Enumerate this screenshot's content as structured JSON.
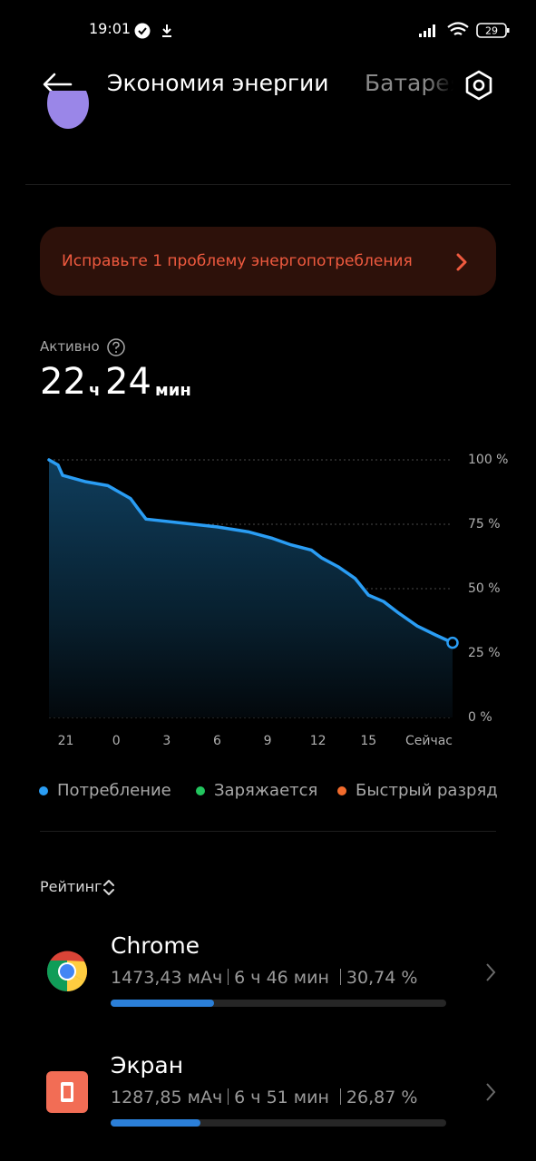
{
  "status_bar": {
    "time": "19:01",
    "battery": "29"
  },
  "header": {
    "title": "Экономия энергии",
    "tab": "Батарея"
  },
  "alert": {
    "text": "Исправьте 1 проблему энергопотребления"
  },
  "active": {
    "label": "Активно",
    "hours": "22",
    "hours_unit": "ч",
    "minutes": "24",
    "minutes_unit": "мин"
  },
  "chart_data": {
    "type": "area",
    "x": [
      20,
      20.54,
      20.81,
      22.2,
      23.5,
      24.85,
      25.3,
      25.77,
      27.9,
      30,
      31.9,
      33.3,
      34.4,
      35.6,
      36.2,
      37.2,
      38.2,
      39,
      39.9,
      40.8,
      41.9,
      43,
      44
    ],
    "series": [
      {
        "name": "Потребление",
        "color": "#2a9df4",
        "values": [
          100,
          98,
          94,
          91.5,
          90,
          85,
          81,
          77,
          75.5,
          74,
          72,
          69.5,
          67,
          65,
          62,
          58.5,
          54,
          47.5,
          45,
          40.5,
          35.5,
          32,
          29
        ]
      },
      {
        "name": "Заряжается",
        "color": "#22c55e",
        "values": [
          null,
          null,
          null,
          null,
          null,
          null,
          null,
          null,
          null,
          null,
          null,
          null,
          null,
          null,
          null,
          null,
          null,
          null,
          null,
          null,
          null,
          null,
          null
        ]
      },
      {
        "name": "Быстрый разряд",
        "color": "#f26b2c",
        "values": [
          null,
          null,
          null,
          null,
          null,
          null,
          null,
          null,
          null,
          null,
          null,
          null,
          null,
          null,
          null,
          null,
          null,
          null,
          null,
          null,
          null,
          null,
          null
        ]
      }
    ],
    "xlim": [
      20,
      44
    ],
    "xticks": [
      21,
      {
        "value": 24,
        "label": "0"
      },
      {
        "value": 27,
        "label": "3"
      },
      {
        "value": 30,
        "label": "6"
      },
      {
        "value": 33,
        "label": "9"
      },
      {
        "value": 36,
        "label": "12"
      },
      {
        "value": 39,
        "label": "15"
      },
      {
        "value": 44,
        "label": "Сейчас"
      }
    ],
    "ylim": [
      0,
      100
    ],
    "yticks": [
      {
        "value": 0,
        "label": "0 %"
      },
      {
        "value": 25,
        "label": "25 %"
      },
      {
        "value": 50,
        "label": "50 %"
      },
      {
        "value": 75,
        "label": "75 %"
      },
      {
        "value": 100,
        "label": "100 %"
      }
    ],
    "grid": true
  },
  "ranking": {
    "label": "Рейтинг",
    "apps": [
      {
        "name": "Chrome",
        "capacity": "1473,43 мАч",
        "time": "6 ч 46 мин",
        "share": 30.74,
        "share_label": "30,74 %"
      },
      {
        "name": "Экран",
        "capacity": "1287,85 мАч",
        "time": "6 ч 51 мин",
        "share": 26.87,
        "share_label": "26,87 %"
      }
    ]
  }
}
